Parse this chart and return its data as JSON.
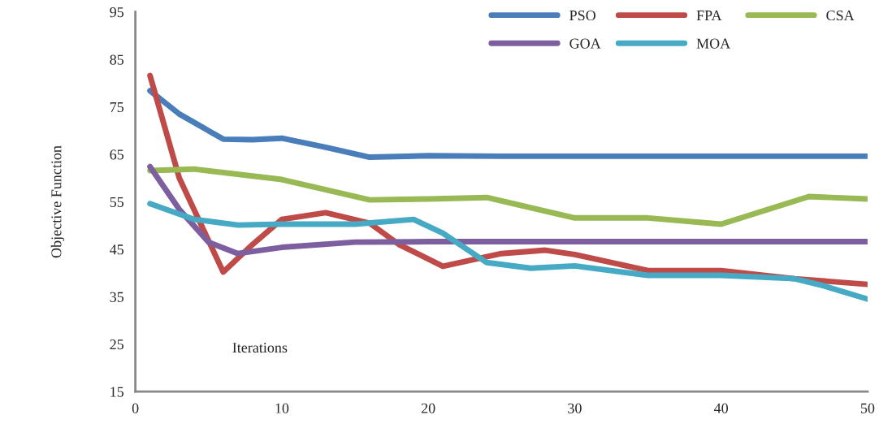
{
  "chart_data": {
    "type": "line",
    "xlabel": "Iterations",
    "ylabel": "Objective Function",
    "xlim": [
      0,
      50
    ],
    "ylim": [
      15,
      95
    ],
    "xticks": [
      0,
      10,
      20,
      30,
      40,
      50
    ],
    "yticks": [
      15,
      25,
      35,
      45,
      55,
      65,
      75,
      85,
      95
    ],
    "grid": false,
    "legend": "top right",
    "marker": "none",
    "line_style": "solid",
    "series": [
      {
        "name": "PSO",
        "color": "#4a7ebb",
        "x": [
          1,
          3,
          6,
          8,
          10,
          13,
          16,
          20,
          25,
          30,
          35,
          40,
          45,
          50
        ],
        "values": [
          78.4,
          73.5,
          68.2,
          68.1,
          68.4,
          66.5,
          64.4,
          64.7,
          64.6,
          64.6,
          64.6,
          64.6,
          64.6,
          64.6
        ]
      },
      {
        "name": "FPA",
        "color": "#be4b48",
        "x": [
          1,
          3,
          6,
          8,
          10,
          13,
          16,
          18,
          21,
          25,
          28,
          30,
          35,
          40,
          45,
          50
        ],
        "values": [
          81.6,
          60,
          40.2,
          46,
          51.3,
          52.7,
          50.5,
          46,
          41.4,
          44.1,
          44.8,
          43.9,
          40.5,
          40.5,
          38.8,
          37.6
        ]
      },
      {
        "name": "CSA",
        "color": "#98b954",
        "x": [
          1,
          4,
          10,
          16,
          20,
          24,
          30,
          35,
          40,
          46,
          50
        ],
        "values": [
          61.6,
          61.9,
          59.7,
          55.4,
          55.6,
          55.9,
          51.6,
          51.6,
          50.3,
          56.1,
          55.6
        ]
      },
      {
        "name": "GOA",
        "color": "#7d5fa0",
        "x": [
          1,
          3,
          5,
          7,
          10,
          15,
          20,
          30,
          40,
          50
        ],
        "values": [
          62.4,
          53.4,
          46.5,
          44.1,
          45.4,
          46.5,
          46.6,
          46.6,
          46.6,
          46.6
        ]
      },
      {
        "name": "MOA",
        "color": "#46aac5",
        "x": [
          1,
          4,
          7,
          10,
          15,
          19,
          21,
          24,
          27,
          30,
          35,
          40,
          45,
          47,
          50
        ],
        "values": [
          54.6,
          51.3,
          50.1,
          50.3,
          50.3,
          51.3,
          48.4,
          42.2,
          41.0,
          41.5,
          39.5,
          39.5,
          38.8,
          37.3,
          34.5
        ]
      }
    ]
  }
}
